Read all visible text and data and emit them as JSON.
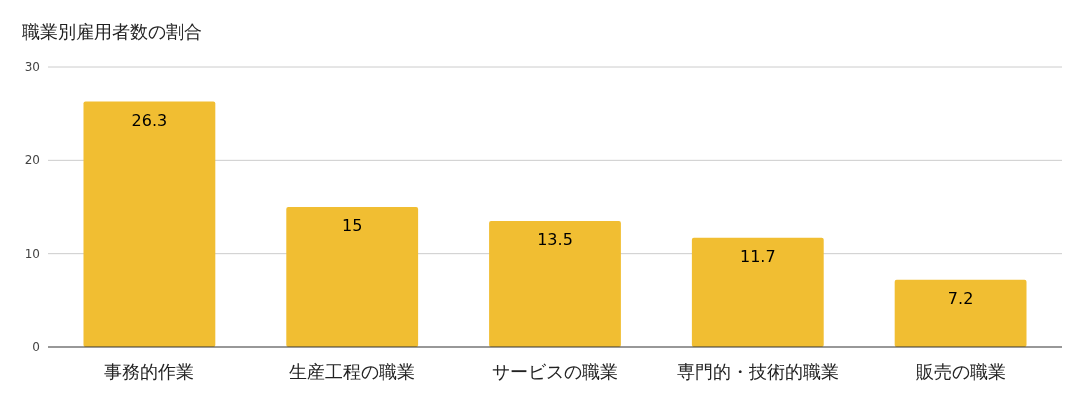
{
  "chart_data": {
    "type": "bar",
    "title": "職業別雇用者数の割合",
    "categories": [
      "事務的作業",
      "生産工程の職業",
      "サービスの職業",
      "専門的・技術的職業",
      "販売の職業"
    ],
    "values": [
      26.3,
      15,
      13.5,
      11.7,
      7.2
    ],
    "color": "#f1be32",
    "ylim": [
      0,
      30
    ],
    "yticks": [
      0,
      10,
      20,
      30
    ],
    "grid": "y",
    "data_labels": true
  }
}
